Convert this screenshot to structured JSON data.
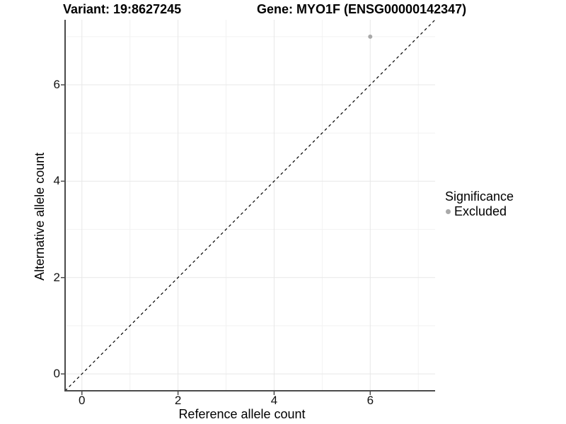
{
  "chart_data": {
    "type": "scatter",
    "title_left": "Variant: 19:8627245",
    "title_right": "Gene: MYO1F (ENSG00000142347)",
    "xlabel": "Reference allele count",
    "ylabel": "Alternative allele count",
    "xlim": [
      -0.35,
      7.35
    ],
    "ylim": [
      -0.35,
      7.35
    ],
    "x_ticks": [
      0,
      2,
      4,
      6
    ],
    "y_ticks": [
      0,
      2,
      4,
      6
    ],
    "x_minor_ticks": [
      1,
      3,
      5,
      7
    ],
    "y_minor_ticks": [
      1,
      3,
      5,
      7
    ],
    "grid": "major and minor gridlines, white panel background",
    "legend_position": "right-center",
    "series": [
      {
        "name": "Excluded",
        "marker": "circle",
        "color": "#a9a9a9",
        "points": [
          {
            "x": 6,
            "y": 7
          }
        ]
      }
    ],
    "reference_line": {
      "kind": "identity y=x",
      "style": "dashed",
      "color": "#000000"
    },
    "colors": {
      "grid_major": "#e7e7e7",
      "grid_minor": "#f2f2f2",
      "axis_line": "#4a4a4a",
      "tick_text": "#111111"
    }
  },
  "legend": {
    "title": "Significance",
    "items": [
      {
        "label": "Excluded",
        "color": "#a9a9a9"
      }
    ]
  }
}
